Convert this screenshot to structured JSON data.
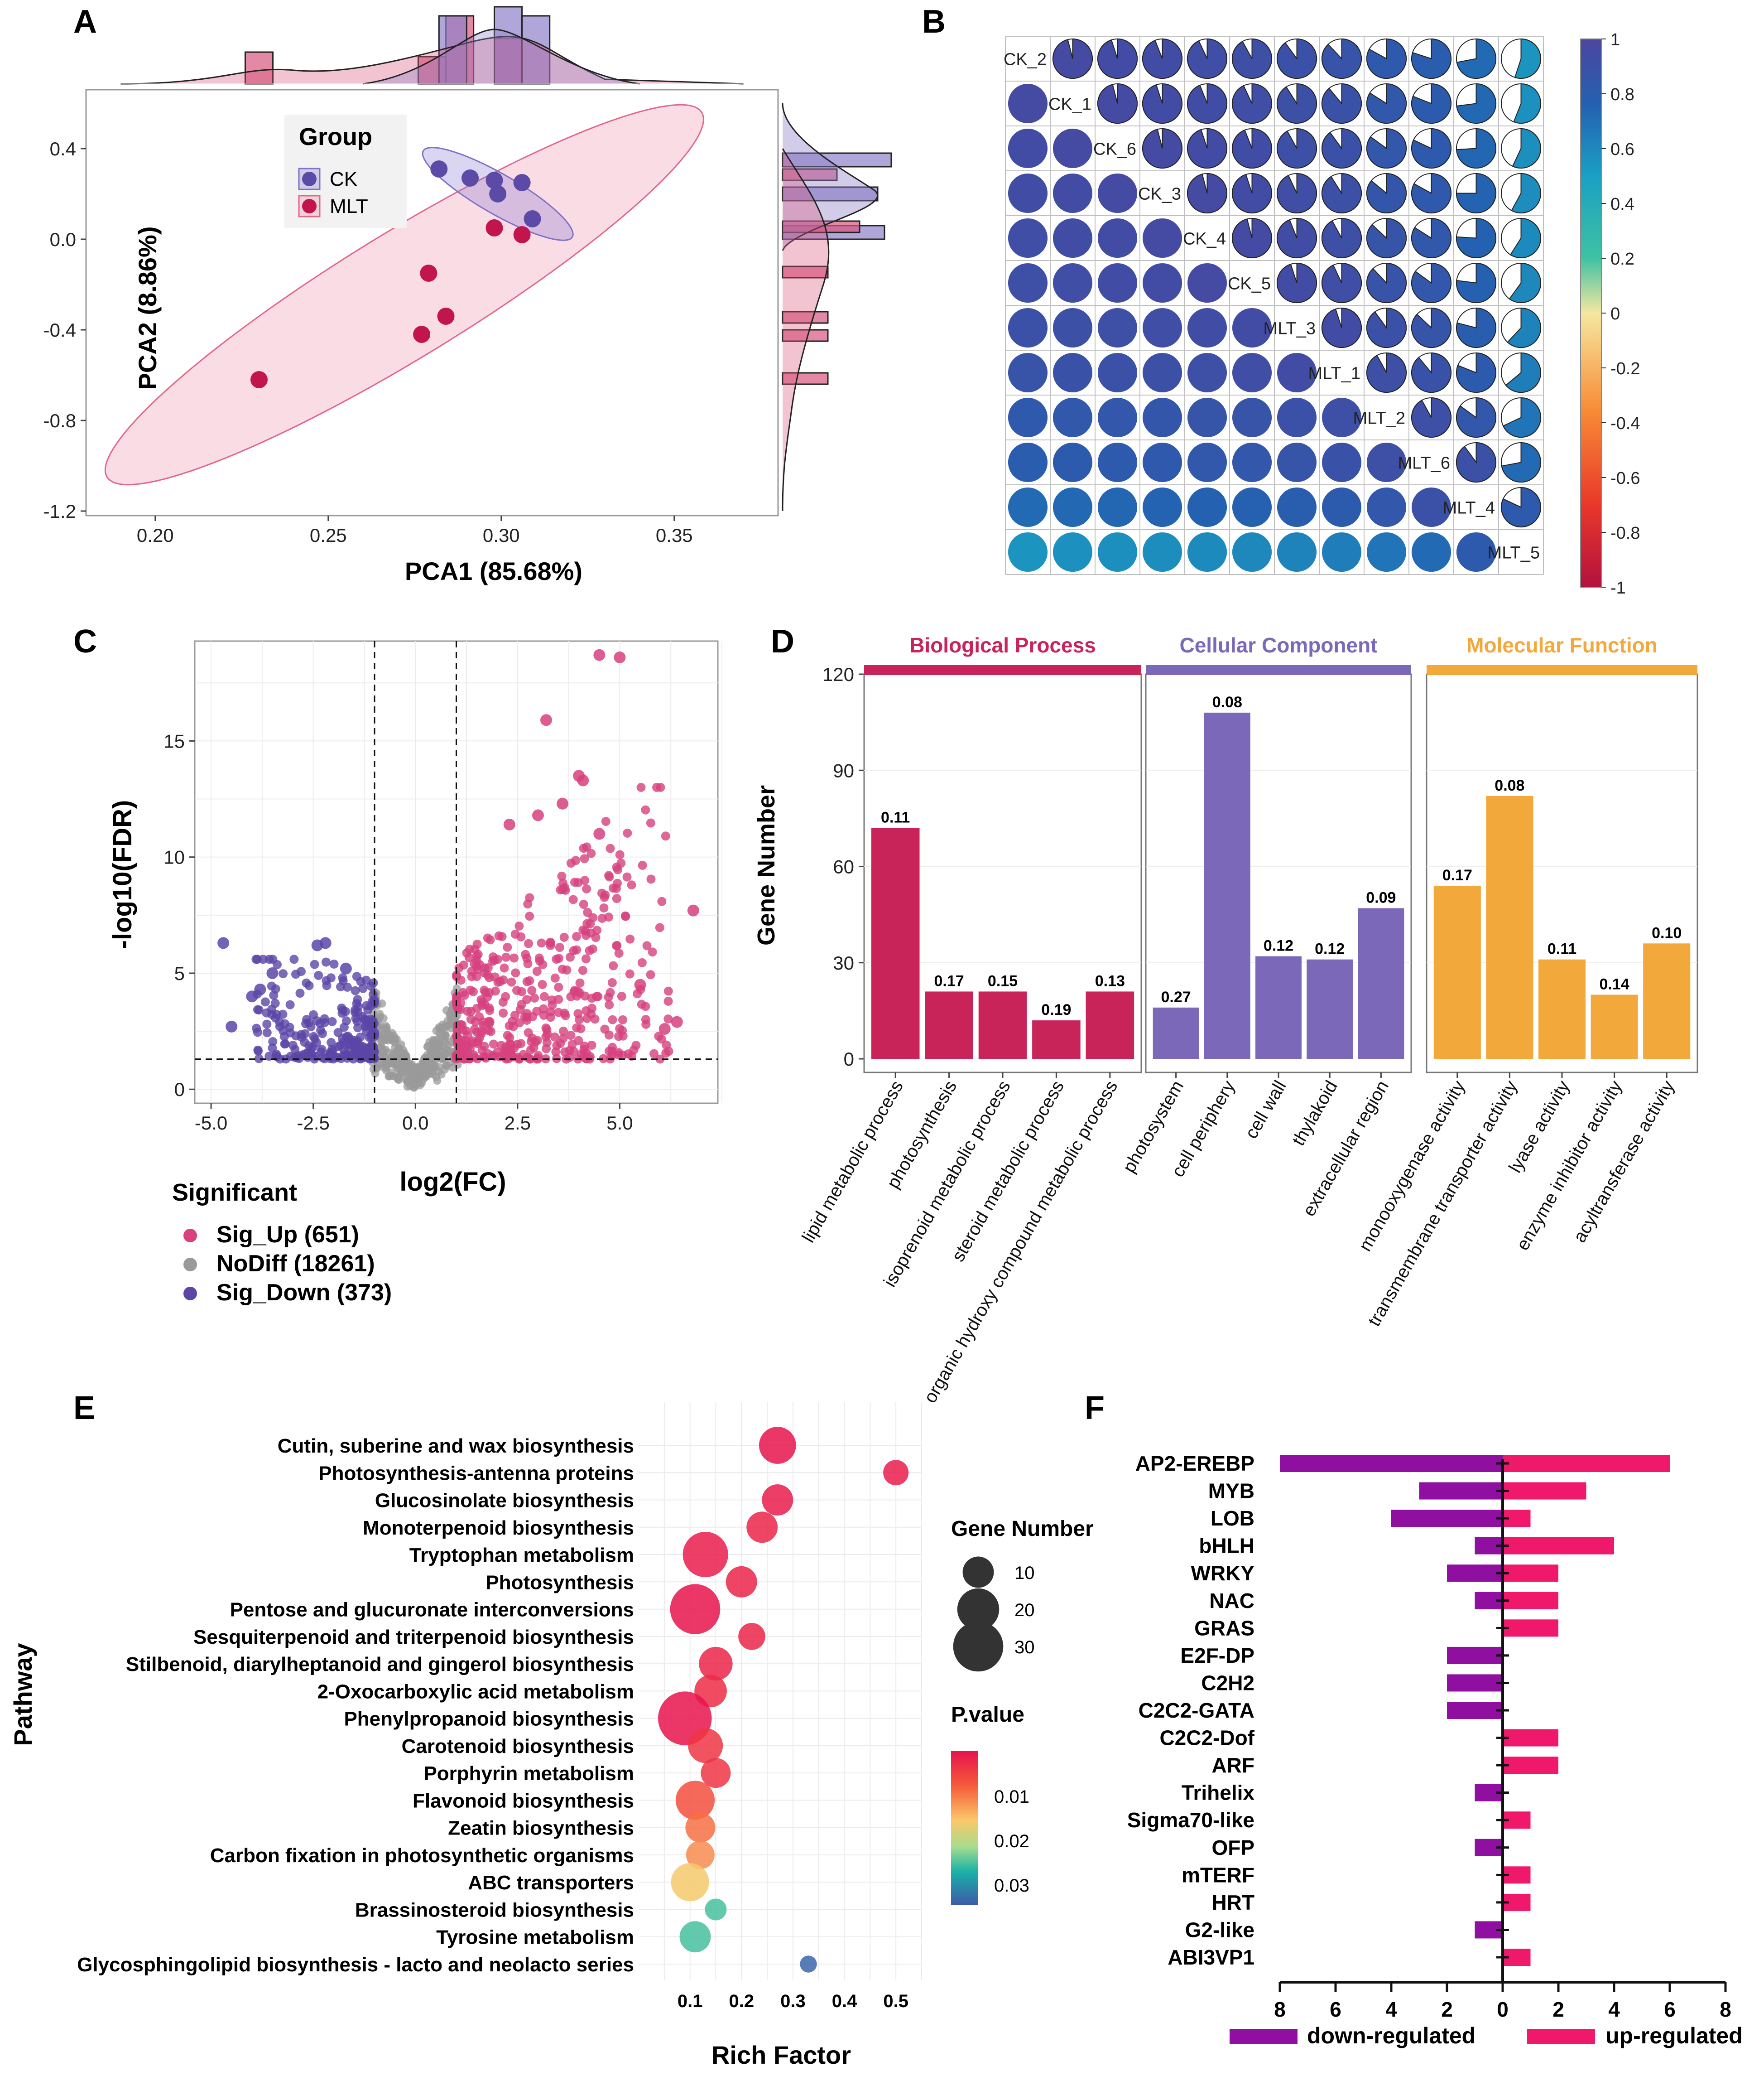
{
  "panel_labels": [
    "A",
    "B",
    "C",
    "D",
    "E",
    "F"
  ],
  "chart_data": [
    {
      "panel": "A",
      "type": "scatter",
      "xlabel": "PCA1 (85.68%)",
      "ylabel": "PCA2 (8.86%)",
      "xlim": [
        0.18,
        0.38
      ],
      "ylim": [
        -1.22,
        0.66
      ],
      "x_ticks": [
        "0.20",
        "0.25",
        "0.30",
        "0.35"
      ],
      "y_ticks": [
        "0.4",
        "0.0",
        "-0.4",
        "-0.8",
        "-1.2"
      ],
      "legend_title": "Group",
      "series": [
        {
          "name": "CK",
          "color": "#5b4aa6",
          "points": [
            [
              0.282,
              0.31
            ],
            [
              0.291,
              0.27
            ],
            [
              0.298,
              0.26
            ],
            [
              0.299,
              0.2
            ],
            [
              0.306,
              0.25
            ],
            [
              0.309,
              0.09
            ]
          ]
        },
        {
          "name": "MLT",
          "color": "#c2154d",
          "points": [
            [
              0.298,
              0.05
            ],
            [
              0.306,
              0.02
            ],
            [
              0.279,
              -0.15
            ],
            [
              0.284,
              -0.34
            ],
            [
              0.277,
              -0.42
            ],
            [
              0.23,
              -0.62
            ]
          ]
        }
      ]
    },
    {
      "panel": "B",
      "type": "heatmap",
      "labels": [
        "CK_2",
        "CK_1",
        "CK_6",
        "CK_3",
        "CK_4",
        "CK_5",
        "MLT_3",
        "MLT_1",
        "MLT_2",
        "MLT_6",
        "MLT_4",
        "MLT_5"
      ],
      "colorbar_ticks": [
        "1",
        "0.8",
        "0.6",
        "0.4",
        "0.2",
        "0",
        "-0.2",
        "-0.4",
        "-0.6",
        "-0.8",
        "-1"
      ],
      "range": [
        -1,
        1
      ],
      "matrix": [
        [
          1.0,
          0.96,
          0.95,
          0.94,
          0.93,
          0.92,
          0.9,
          0.88,
          0.83,
          0.8,
          0.72,
          0.55
        ],
        [
          0.96,
          1.0,
          0.96,
          0.95,
          0.94,
          0.93,
          0.91,
          0.89,
          0.84,
          0.81,
          0.73,
          0.56
        ],
        [
          0.95,
          0.96,
          1.0,
          0.96,
          0.95,
          0.94,
          0.92,
          0.9,
          0.85,
          0.82,
          0.74,
          0.57
        ],
        [
          0.94,
          0.95,
          0.96,
          1.0,
          0.96,
          0.95,
          0.93,
          0.91,
          0.86,
          0.83,
          0.75,
          0.58
        ],
        [
          0.93,
          0.94,
          0.95,
          0.96,
          1.0,
          0.96,
          0.94,
          0.92,
          0.87,
          0.84,
          0.76,
          0.59
        ],
        [
          0.92,
          0.93,
          0.94,
          0.95,
          0.96,
          1.0,
          0.95,
          0.93,
          0.88,
          0.85,
          0.77,
          0.6
        ],
        [
          0.9,
          0.91,
          0.92,
          0.93,
          0.94,
          0.95,
          1.0,
          0.95,
          0.9,
          0.87,
          0.79,
          0.62
        ],
        [
          0.88,
          0.89,
          0.9,
          0.91,
          0.92,
          0.93,
          0.95,
          1.0,
          0.92,
          0.89,
          0.81,
          0.64
        ],
        [
          0.83,
          0.84,
          0.85,
          0.86,
          0.87,
          0.88,
          0.9,
          0.92,
          1.0,
          0.92,
          0.85,
          0.68
        ],
        [
          0.8,
          0.81,
          0.82,
          0.83,
          0.84,
          0.85,
          0.87,
          0.89,
          0.92,
          1.0,
          0.9,
          0.72
        ],
        [
          0.72,
          0.73,
          0.74,
          0.75,
          0.76,
          0.77,
          0.79,
          0.81,
          0.85,
          0.9,
          1.0,
          0.82
        ],
        [
          0.55,
          0.56,
          0.57,
          0.58,
          0.59,
          0.6,
          0.62,
          0.64,
          0.68,
          0.72,
          0.82,
          1.0
        ]
      ]
    },
    {
      "panel": "C",
      "type": "scatter",
      "xlabel": "log2(FC)",
      "ylabel": "-log10(FDR)",
      "xlim": [
        -5.4,
        7.4
      ],
      "ylim": [
        -0.6,
        19.3
      ],
      "x_ticks": [
        "-5.0",
        "-2.5",
        "0.0",
        "2.5",
        "5.0"
      ],
      "y_ticks": [
        "0",
        "5",
        "10",
        "15"
      ],
      "thresholds": {
        "log2fc": [
          -1,
          1
        ],
        "neglog10fdr": 1.3
      },
      "legend_title": "Significant",
      "legend": [
        {
          "label": "Sig_Up (651)",
          "color": "#d6417e"
        },
        {
          "label": "NoDiff (18261)",
          "color": "#9a9a9a"
        },
        {
          "label": "Sig_Down (373)",
          "color": "#5b46a8"
        }
      ],
      "highlight_points": {
        "up": [
          [
            4.5,
            18.7
          ],
          [
            5.0,
            18.6
          ],
          [
            3.2,
            15.9
          ],
          [
            4.0,
            13.5
          ],
          [
            4.1,
            13.3
          ],
          [
            3.6,
            12.3
          ],
          [
            2.3,
            11.4
          ],
          [
            3.0,
            11.8
          ],
          [
            4.5,
            11.0
          ],
          [
            6.8,
            7.7
          ],
          [
            5.5,
            4.5
          ],
          [
            6.4,
            2.9
          ],
          [
            6.1,
            2.6
          ]
        ],
        "down": [
          [
            -4.7,
            6.3
          ],
          [
            -2.2,
            6.3
          ],
          [
            -2.4,
            6.2
          ],
          [
            -3.5,
            5.0
          ],
          [
            -3.8,
            4.3
          ],
          [
            -4.0,
            4.0
          ],
          [
            -4.5,
            2.7
          ],
          [
            -1.7,
            5.2
          ]
        ]
      }
    },
    {
      "panel": "D",
      "type": "bar",
      "ylabel": "Gene Number",
      "ylim": [
        0,
        120
      ],
      "y_ticks": [
        "0",
        "30",
        "60",
        "90",
        "120"
      ],
      "facets": [
        {
          "title": "Biological Process",
          "color": "#c8245a",
          "categories": [
            "lipid metabolic process",
            "photosynthesis",
            "isoprenoid metabolic process",
            "steroid metabolic process",
            "organic hydroxy compound metabolic process"
          ],
          "values": [
            72,
            21,
            21,
            12,
            21
          ],
          "labels": [
            "0.11",
            "0.17",
            "0.15",
            "0.19",
            "0.13"
          ]
        },
        {
          "title": "Cellular Component",
          "color": "#7b68b8",
          "categories": [
            "photosystem",
            "cell periphery",
            "cell wall",
            "thylakoid",
            "extracellular region"
          ],
          "values": [
            16,
            108,
            32,
            31,
            47
          ],
          "labels": [
            "0.27",
            "0.08",
            "0.12",
            "0.12",
            "0.09"
          ]
        },
        {
          "title": "Molecular Function",
          "color": "#f2a83a",
          "categories": [
            "monooxygenase activity",
            "transmembrane transporter activity",
            "lyase activity",
            "enzyme inhibitor activity",
            "acyltransferase activity"
          ],
          "values": [
            54,
            82,
            31,
            20,
            36
          ],
          "labels": [
            "0.17",
            "0.08",
            "0.11",
            "0.14",
            "0.10"
          ]
        }
      ]
    },
    {
      "panel": "E",
      "type": "scatter",
      "xlabel": "Rich Factor",
      "ylabel": "Pathway",
      "xlim": [
        0.0,
        0.55
      ],
      "x_ticks": [
        "0.1",
        "0.2",
        "0.3",
        "0.4",
        "0.5"
      ],
      "size_legend_title": "Gene Number",
      "size_legend": [
        10,
        20,
        30
      ],
      "color_legend_title": "P.value",
      "color_legend_ticks": [
        "0.01",
        "0.02",
        "0.03"
      ],
      "pathways": [
        "Cutin, suberine and wax biosynthesis",
        "Photosynthesis-antenna proteins",
        "Glucosinolate biosynthesis",
        "Monoterpenoid biosynthesis",
        "Tryptophan metabolism",
        "Photosynthesis",
        "Pentose and glucuronate interconversions",
        "Sesquiterpenoid and triterpenoid biosynthesis",
        "Stilbenoid, diarylheptanoid and gingerol biosynthesis",
        "2-Oxocarboxylic acid metabolism",
        "Phenylpropanoid biosynthesis",
        "Carotenoid biosynthesis",
        "Porphyrin metabolism",
        "Flavonoid biosynthesis",
        "Zeatin biosynthesis",
        "Carbon fixation in photosynthetic organisms",
        "ABC transporters",
        "Brassinosteroid biosynthesis",
        "Tyrosine metabolism",
        "Glycosphingolipid biosynthesis - lacto and neolacto series"
      ],
      "rich_factor": [
        0.27,
        0.5,
        0.27,
        0.24,
        0.13,
        0.2,
        0.11,
        0.22,
        0.15,
        0.14,
        0.09,
        0.13,
        0.15,
        0.11,
        0.12,
        0.12,
        0.1,
        0.15,
        0.11,
        0.33
      ],
      "gene_number": [
        15,
        6,
        10,
        10,
        24,
        10,
        30,
        7,
        12,
        11,
        35,
        13,
        9,
        17,
        9,
        8,
        16,
        4,
        10,
        2
      ],
      "p_value": [
        0.001,
        0.002,
        0.002,
        0.003,
        0.002,
        0.003,
        0.001,
        0.003,
        0.003,
        0.004,
        0.001,
        0.005,
        0.005,
        0.008,
        0.011,
        0.013,
        0.018,
        0.028,
        0.028,
        0.037
      ]
    },
    {
      "panel": "F",
      "type": "bar",
      "orientation": "horizontal",
      "xlim": [
        -8,
        8
      ],
      "x_ticks": [
        "8",
        "6",
        "4",
        "2",
        "0",
        "2",
        "4",
        "6",
        "8"
      ],
      "categories": [
        "AP2-EREBP",
        "MYB",
        "LOB",
        "bHLH",
        "WRKY",
        "NAC",
        "GRAS",
        "E2F-DP",
        "C2H2",
        "C2C2-GATA",
        "C2C2-Dof",
        "ARF",
        "Trihelix",
        "Sigma70-like",
        "OFP",
        "mTERF",
        "HRT",
        "G2-like",
        "ABI3VP1"
      ],
      "series": [
        {
          "name": "down-regulated",
          "color": "#8e0fa0",
          "values": [
            8,
            3,
            4,
            1,
            2,
            1,
            0,
            2,
            2,
            2,
            0,
            0,
            1,
            0,
            1,
            0,
            0,
            1,
            0
          ]
        },
        {
          "name": "up-regulated",
          "color": "#f0186a",
          "values": [
            6,
            3,
            1,
            4,
            2,
            2,
            2,
            0,
            0,
            0,
            2,
            2,
            0,
            1,
            0,
            1,
            1,
            0,
            1
          ]
        }
      ]
    }
  ]
}
